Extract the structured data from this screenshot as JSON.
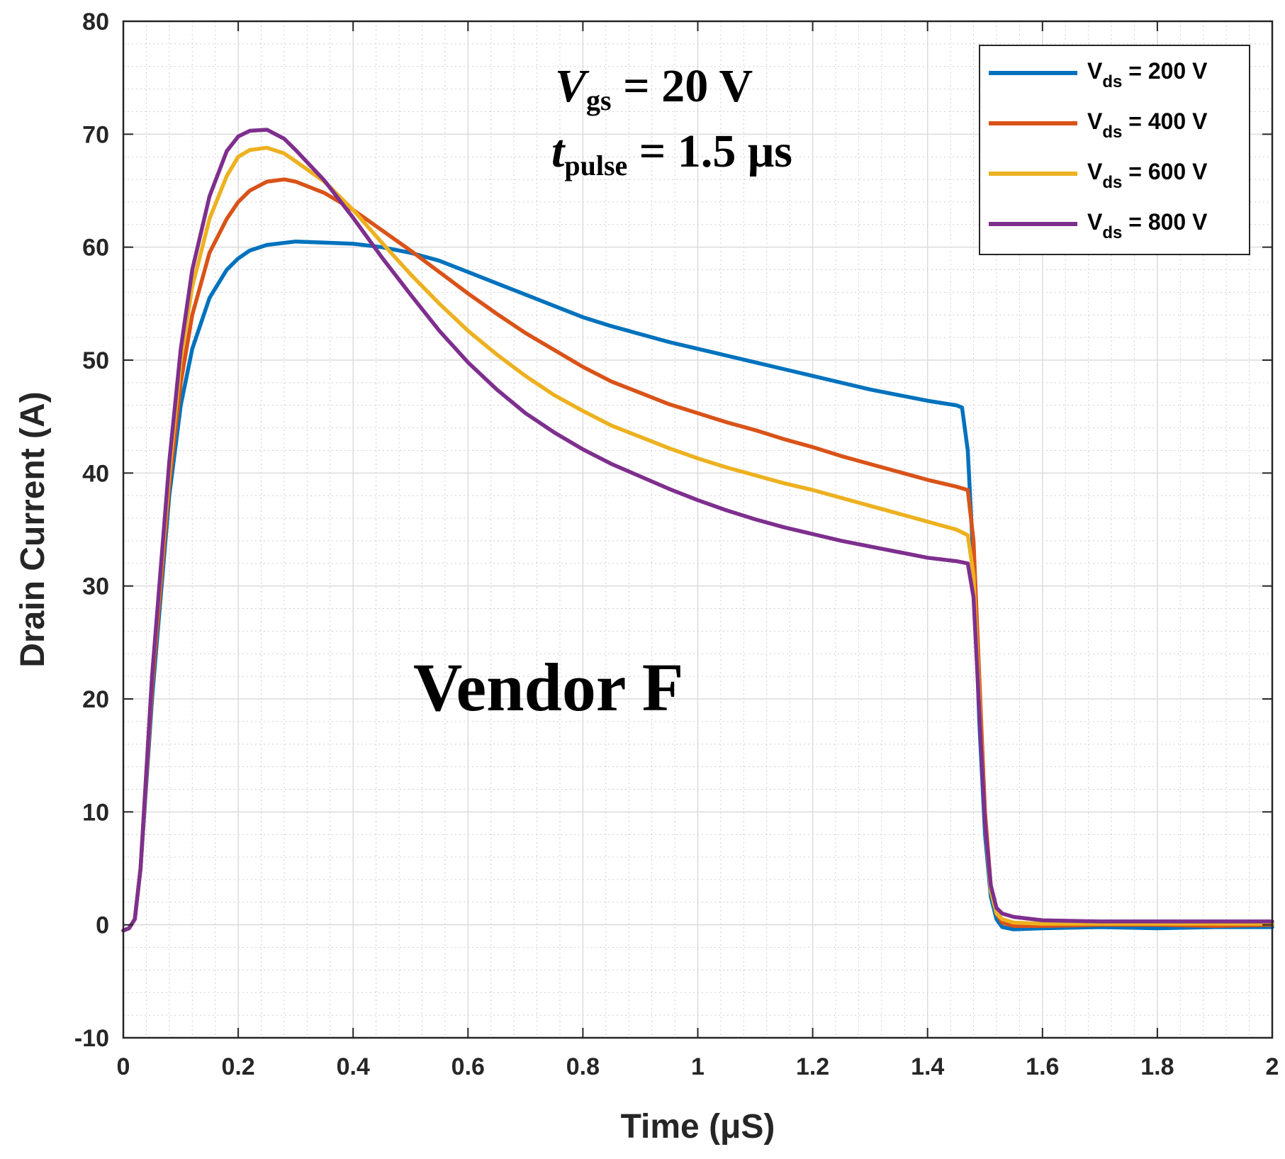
{
  "chart_data": {
    "type": "line",
    "title": "",
    "xlabel": "Time (μS)",
    "ylabel": "Drain Current (A)",
    "xlim": [
      0,
      2
    ],
    "ylim": [
      -10,
      80
    ],
    "x_ticks": [
      "0",
      "0.2",
      "0.4",
      "0.6",
      "0.8",
      "1",
      "1.2",
      "1.4",
      "1.6",
      "1.8",
      "2"
    ],
    "y_ticks": [
      "-10",
      "0",
      "10",
      "20",
      "30",
      "40",
      "50",
      "60",
      "70",
      "80"
    ],
    "grid": true,
    "minor_grid": true,
    "legend_position": "top-right",
    "annotations": {
      "vgs_symbol": "V",
      "vgs_sub": "gs",
      "vgs_value": " = 20 V",
      "tpulse_symbol": "t",
      "tpulse_sub": "pulse",
      "tpulse_value": " = 1.5 μs",
      "vendor": "Vendor F"
    },
    "series": [
      {
        "name": "V_ds = 200 V",
        "legend_prefix": "V",
        "legend_sub": "ds",
        "legend_value": " = 200 V",
        "color": "#0072BD",
        "x": [
          0,
          0.01,
          0.02,
          0.03,
          0.05,
          0.08,
          0.1,
          0.12,
          0.15,
          0.18,
          0.2,
          0.22,
          0.25,
          0.3,
          0.35,
          0.4,
          0.45,
          0.5,
          0.55,
          0.6,
          0.65,
          0.7,
          0.75,
          0.8,
          0.85,
          0.9,
          0.95,
          1.0,
          1.05,
          1.1,
          1.15,
          1.2,
          1.25,
          1.3,
          1.35,
          1.4,
          1.45,
          1.46,
          1.47,
          1.48,
          1.49,
          1.5,
          1.51,
          1.52,
          1.53,
          1.55,
          1.6,
          1.7,
          1.8,
          1.9,
          2.0
        ],
        "y": [
          -0.5,
          -0.3,
          0.5,
          5,
          20,
          38,
          46,
          51,
          55.5,
          58,
          59,
          59.7,
          60.2,
          60.5,
          60.4,
          60.3,
          60,
          59.5,
          58.8,
          57.8,
          56.8,
          55.8,
          54.8,
          53.8,
          53,
          52.3,
          51.6,
          51,
          50.4,
          49.8,
          49.2,
          48.6,
          48,
          47.4,
          46.9,
          46.4,
          46,
          45.8,
          42,
          32,
          18,
          8,
          2.5,
          0.5,
          -0.2,
          -0.4,
          -0.3,
          -0.2,
          -0.3,
          -0.2,
          -0.2
        ]
      },
      {
        "name": "V_ds = 400 V",
        "legend_prefix": "V",
        "legend_sub": "ds",
        "legend_value": " = 400 V",
        "color": "#D95319",
        "x": [
          0,
          0.01,
          0.02,
          0.03,
          0.05,
          0.08,
          0.1,
          0.12,
          0.15,
          0.18,
          0.2,
          0.22,
          0.25,
          0.28,
          0.3,
          0.35,
          0.4,
          0.45,
          0.5,
          0.55,
          0.6,
          0.65,
          0.7,
          0.75,
          0.8,
          0.85,
          0.9,
          0.95,
          1.0,
          1.05,
          1.1,
          1.15,
          1.2,
          1.25,
          1.3,
          1.35,
          1.4,
          1.45,
          1.47,
          1.48,
          1.49,
          1.5,
          1.51,
          1.52,
          1.53,
          1.55,
          1.6,
          1.7,
          1.8,
          1.9,
          2.0
        ],
        "y": [
          -0.5,
          -0.3,
          0.5,
          5,
          21,
          39,
          48,
          54,
          59.5,
          62.5,
          64,
          65,
          65.8,
          66,
          65.8,
          64.8,
          63.3,
          61.5,
          59.7,
          57.8,
          55.9,
          54.1,
          52.4,
          50.9,
          49.4,
          48.1,
          47.1,
          46.1,
          45.3,
          44.5,
          43.8,
          43,
          42.3,
          41.5,
          40.8,
          40.1,
          39.4,
          38.8,
          38.5,
          34,
          22,
          10,
          3.5,
          1,
          0.2,
          -0.1,
          -0.1,
          0,
          0,
          -0.1,
          0
        ]
      },
      {
        "name": "V_ds = 600 V",
        "legend_prefix": "V",
        "legend_sub": "ds",
        "legend_value": " = 600 V",
        "color": "#EDB120",
        "x": [
          0,
          0.01,
          0.02,
          0.03,
          0.05,
          0.08,
          0.1,
          0.12,
          0.15,
          0.18,
          0.2,
          0.22,
          0.25,
          0.28,
          0.3,
          0.35,
          0.4,
          0.45,
          0.5,
          0.55,
          0.6,
          0.65,
          0.7,
          0.75,
          0.8,
          0.85,
          0.9,
          0.95,
          1.0,
          1.05,
          1.1,
          1.15,
          1.2,
          1.25,
          1.3,
          1.35,
          1.4,
          1.45,
          1.47,
          1.48,
          1.49,
          1.5,
          1.51,
          1.52,
          1.53,
          1.55,
          1.6,
          1.7,
          1.8,
          1.9,
          2.0
        ],
        "y": [
          -0.5,
          -0.3,
          0.5,
          5,
          22,
          40,
          50,
          56.5,
          62.5,
          66.3,
          68,
          68.6,
          68.8,
          68.3,
          67.6,
          65.8,
          63.3,
          60.4,
          57.6,
          55,
          52.6,
          50.5,
          48.6,
          46.9,
          45.5,
          44.2,
          43.2,
          42.2,
          41.3,
          40.5,
          39.8,
          39.1,
          38.5,
          37.8,
          37.1,
          36.4,
          35.7,
          35,
          34.5,
          31,
          20,
          9,
          3,
          1,
          0.5,
          0.2,
          0.1,
          0.1,
          0.1,
          0.1,
          0.1
        ]
      },
      {
        "name": "V_ds = 800 V",
        "legend_prefix": "V",
        "legend_sub": "ds",
        "legend_value": " = 800 V",
        "color": "#7E2F8E",
        "x": [
          0,
          0.01,
          0.02,
          0.03,
          0.05,
          0.08,
          0.1,
          0.12,
          0.15,
          0.18,
          0.2,
          0.22,
          0.25,
          0.28,
          0.3,
          0.35,
          0.4,
          0.45,
          0.5,
          0.55,
          0.6,
          0.65,
          0.7,
          0.75,
          0.8,
          0.85,
          0.9,
          0.95,
          1.0,
          1.05,
          1.1,
          1.15,
          1.2,
          1.25,
          1.3,
          1.35,
          1.4,
          1.45,
          1.47,
          1.48,
          1.49,
          1.5,
          1.51,
          1.52,
          1.53,
          1.55,
          1.6,
          1.7,
          1.8,
          1.9,
          2.0
        ],
        "y": [
          -0.5,
          -0.3,
          0.5,
          5,
          22,
          41,
          51,
          58,
          64.5,
          68.5,
          69.8,
          70.3,
          70.4,
          69.6,
          68.6,
          65.9,
          62.6,
          59.1,
          55.8,
          52.6,
          49.8,
          47.4,
          45.3,
          43.6,
          42.1,
          40.8,
          39.7,
          38.6,
          37.6,
          36.7,
          35.9,
          35.2,
          34.6,
          34,
          33.5,
          33,
          32.5,
          32.2,
          32,
          29,
          19,
          9,
          3.5,
          1.5,
          1,
          0.7,
          0.4,
          0.3,
          0.3,
          0.3,
          0.3
        ]
      }
    ]
  }
}
